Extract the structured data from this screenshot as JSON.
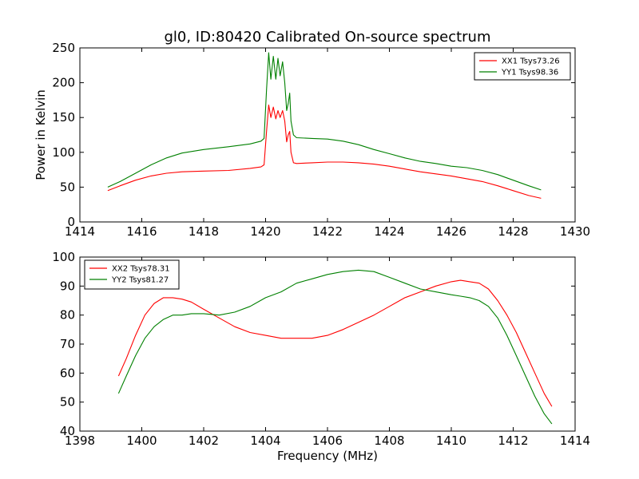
{
  "chart_data": [
    {
      "type": "line",
      "title": "gl0, ID:80420 Calibrated On-source spectrum",
      "xlabel": "",
      "ylabel": "Power in Kelvin",
      "xlim": [
        1414,
        1430
      ],
      "ylim": [
        0,
        250
      ],
      "xticks": [
        "1414",
        "1416",
        "1418",
        "1420",
        "1422",
        "1424",
        "1426",
        "1428",
        "1430"
      ],
      "yticks": [
        "0",
        "50",
        "100",
        "150",
        "200",
        "250"
      ],
      "legend_position": "upper right",
      "series": [
        {
          "name": "XX1 Tsys73.26",
          "color": "#ff0000",
          "x": [
            1414.9,
            1415.3,
            1415.8,
            1416.3,
            1416.8,
            1417.3,
            1418.0,
            1418.8,
            1419.5,
            1419.85,
            1419.95,
            1420.03,
            1420.1,
            1420.17,
            1420.25,
            1420.33,
            1420.4,
            1420.47,
            1420.55,
            1420.62,
            1420.68,
            1420.73,
            1420.78,
            1420.82,
            1420.9,
            1421.0,
            1421.5,
            1422.0,
            1422.5,
            1423.0,
            1423.5,
            1424.0,
            1424.5,
            1425.0,
            1425.5,
            1426.0,
            1426.5,
            1427.0,
            1427.5,
            1428.0,
            1428.5,
            1428.9
          ],
          "values": [
            45,
            52,
            60,
            66,
            70,
            72,
            73,
            74,
            77,
            79,
            82,
            130,
            168,
            150,
            165,
            148,
            160,
            150,
            160,
            145,
            115,
            125,
            130,
            100,
            85,
            84,
            85,
            86,
            86,
            85,
            83,
            80,
            76,
            72,
            69,
            66,
            62,
            58,
            52,
            45,
            38,
            34
          ]
        },
        {
          "name": "YY1 Tsys98.36",
          "color": "#008000",
          "x": [
            1414.9,
            1415.3,
            1415.8,
            1416.3,
            1416.8,
            1417.3,
            1418.0,
            1418.8,
            1419.5,
            1419.85,
            1419.95,
            1420.03,
            1420.1,
            1420.17,
            1420.25,
            1420.33,
            1420.4,
            1420.47,
            1420.55,
            1420.62,
            1420.68,
            1420.73,
            1420.78,
            1420.82,
            1420.9,
            1421.0,
            1421.5,
            1422.0,
            1422.5,
            1423.0,
            1423.5,
            1424.0,
            1424.5,
            1425.0,
            1425.5,
            1426.0,
            1426.5,
            1427.0,
            1427.5,
            1428.0,
            1428.5,
            1428.9
          ],
          "values": [
            50,
            58,
            70,
            82,
            92,
            99,
            104,
            108,
            112,
            116,
            120,
            190,
            243,
            205,
            238,
            205,
            235,
            210,
            230,
            200,
            160,
            170,
            185,
            145,
            125,
            121,
            120,
            119,
            116,
            111,
            104,
            98,
            92,
            87,
            84,
            80,
            78,
            74,
            68,
            60,
            52,
            46
          ]
        }
      ]
    },
    {
      "type": "line",
      "title": "",
      "xlabel": "Frequency (MHz)",
      "ylabel": "",
      "xlim": [
        1398,
        1414
      ],
      "ylim": [
        40,
        100
      ],
      "xticks": [
        "1398",
        "1400",
        "1402",
        "1404",
        "1406",
        "1408",
        "1410",
        "1412",
        "1414"
      ],
      "yticks": [
        "40",
        "50",
        "60",
        "70",
        "80",
        "90",
        "100"
      ],
      "legend_position": "upper left",
      "series": [
        {
          "name": "XX2 Tsys78.31",
          "color": "#ff0000",
          "x": [
            1399.25,
            1399.5,
            1399.8,
            1400.1,
            1400.4,
            1400.7,
            1401.0,
            1401.3,
            1401.6,
            1402.0,
            1402.5,
            1403.0,
            1403.5,
            1404.0,
            1404.5,
            1405.0,
            1405.5,
            1406.0,
            1406.5,
            1407.0,
            1407.5,
            1408.0,
            1408.5,
            1409.0,
            1409.5,
            1410.0,
            1410.3,
            1410.6,
            1410.9,
            1411.2,
            1411.5,
            1411.8,
            1412.1,
            1412.4,
            1412.7,
            1413.0,
            1413.25
          ],
          "values": [
            59,
            65,
            73,
            80,
            84,
            86,
            86,
            85.5,
            84.5,
            82,
            79,
            76,
            74,
            73,
            72,
            72,
            72,
            73,
            75,
            77.5,
            80,
            83,
            86,
            88,
            90,
            91.5,
            92,
            91.5,
            91,
            89,
            85,
            80,
            74,
            67,
            60,
            53,
            48.5
          ]
        },
        {
          "name": "YY2 Tsys81.27",
          "color": "#008000",
          "x": [
            1399.25,
            1399.5,
            1399.8,
            1400.1,
            1400.4,
            1400.7,
            1401.0,
            1401.3,
            1401.6,
            1402.0,
            1402.5,
            1403.0,
            1403.5,
            1404.0,
            1404.5,
            1405.0,
            1405.5,
            1406.0,
            1406.5,
            1407.0,
            1407.5,
            1408.0,
            1408.5,
            1409.0,
            1409.5,
            1410.0,
            1410.3,
            1410.6,
            1410.9,
            1411.2,
            1411.5,
            1411.8,
            1412.1,
            1412.4,
            1412.7,
            1413.0,
            1413.25
          ],
          "values": [
            53,
            59,
            66,
            72,
            76,
            78.5,
            80,
            80,
            80.5,
            80.5,
            80,
            81,
            83,
            86,
            88,
            91,
            92.5,
            94,
            95,
            95.5,
            95,
            93,
            91,
            89,
            88,
            87,
            86.5,
            86,
            85,
            83,
            79,
            73,
            66,
            59,
            52,
            46,
            42.5
          ]
        }
      ]
    }
  ]
}
